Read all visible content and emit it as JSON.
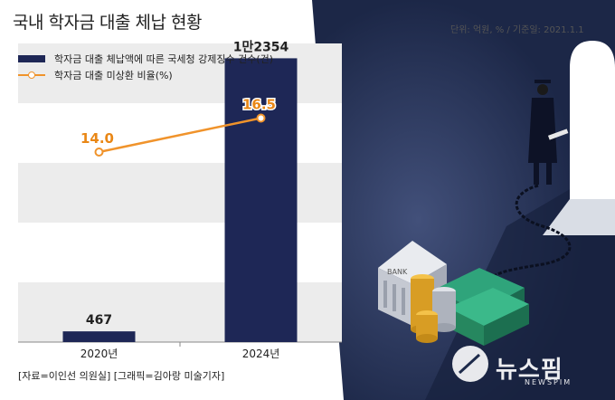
{
  "title": "국내 학자금 대출 체납 현황",
  "unit_note": "단위: 억원, % / 기준일: 2021.1.1",
  "source_note": "[자료=이인선 의원실] [그래픽=김아랑 미술기자]",
  "watermark": "뉴스핌",
  "watermark_sub": "NEWSPIM",
  "colors": {
    "bar": "#1e2756",
    "line": "#f0932b",
    "band": "#ececec",
    "illustration_bg": "#1d2a4a"
  },
  "chart_data": {
    "type": "bar",
    "categories": [
      "2020년",
      "2024년"
    ],
    "series": [
      {
        "name": "학자금 대출 체납액에 따른 국세청 강제징수 건수(건)",
        "type": "bar",
        "values": [
          467,
          12354
        ],
        "value_labels": [
          "467",
          "1만2354"
        ]
      },
      {
        "name": "학자금 대출 미상환 비율(%)",
        "type": "line",
        "values": [
          14.0,
          16.5
        ],
        "value_labels": [
          "14.0",
          "16.5"
        ]
      }
    ],
    "title": "국내 학자금 대출 체납 현황",
    "xlabel": "",
    "ylabel": "",
    "ylim_bar": [
      0,
      13000
    ],
    "ylim_line": [
      0,
      22
    ],
    "grid": true,
    "legend": "top-left"
  }
}
